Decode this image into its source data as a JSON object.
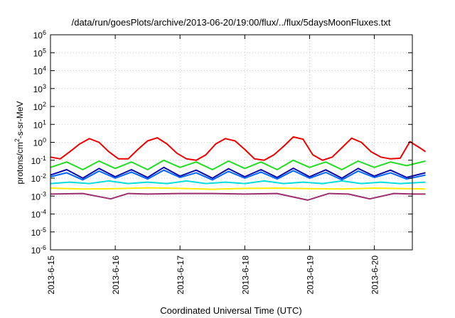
{
  "chart_data": {
    "type": "line",
    "title": "/data/run/goesPlots/archive/2013-06-20/19:00/flux/../flux/5daysMoonFluxes.txt",
    "xlabel": "Coordinated Universal Time (UTC)",
    "ylabel": {
      "pre": "protons/cm",
      "sup": "2",
      "post": "-s-sr-MeV"
    },
    "x_range": [
      "2013-06-15",
      "2013-06-20T19:00"
    ],
    "x_ticks": [
      "2013-6-15",
      "2013-6-16",
      "2013-6-17",
      "2013-6-18",
      "2013-6-19",
      "2013-6-20"
    ],
    "y_scale": "log",
    "y_range": [
      1e-06,
      1000000.0
    ],
    "y_ticks": [
      {
        "base": "10",
        "exp": "-6"
      },
      {
        "base": "10",
        "exp": "-5"
      },
      {
        "base": "10",
        "exp": "-4"
      },
      {
        "base": "10",
        "exp": "-3"
      },
      {
        "base": "10",
        "exp": "-2"
      },
      {
        "base": "10",
        "exp": "-1"
      },
      {
        "base": "10",
        "exp": "0"
      },
      {
        "base": "10",
        "exp": "1"
      },
      {
        "base": "10",
        "exp": "2"
      },
      {
        "base": "10",
        "exp": "3"
      },
      {
        "base": "10",
        "exp": "4"
      },
      {
        "base": "10",
        "exp": "5"
      },
      {
        "base": "10",
        "exp": "6"
      }
    ],
    "grid": true,
    "legend": "none",
    "series": [
      {
        "color": "#9b2f6f",
        "x_days": [
          0,
          0.5,
          0.93,
          1.2,
          1.5,
          2.0,
          2.5,
          3.0,
          3.5,
          3.97,
          4.3,
          4.6,
          4.93,
          5.3,
          5.6,
          5.79
        ],
        "y": [
          0.0013,
          0.0014,
          0.0007,
          0.0014,
          0.0013,
          0.0014,
          0.0014,
          0.0013,
          0.0014,
          0.0006,
          0.0014,
          0.0013,
          0.0007,
          0.0014,
          0.0013,
          0.0013
        ]
      },
      {
        "color": "#ffee00",
        "x_days": [
          0,
          0.5,
          1.0,
          1.5,
          2.0,
          2.5,
          3.0,
          3.5,
          4.0,
          4.5,
          5.0,
          5.5,
          5.79
        ],
        "y": [
          0.0028,
          0.0025,
          0.0026,
          0.0029,
          0.0027,
          0.0024,
          0.0027,
          0.0028,
          0.0026,
          0.0025,
          0.0028,
          0.0026,
          0.0025
        ]
      },
      {
        "color": "#00dddd",
        "x_days": [
          0,
          0.3,
          0.6,
          0.9,
          1.2,
          1.5,
          1.8,
          2.1,
          2.4,
          2.7,
          3.0,
          3.3,
          3.6,
          3.9,
          4.2,
          4.5,
          4.8,
          5.1,
          5.4,
          5.79
        ],
        "y": [
          0.005,
          0.006,
          0.005,
          0.007,
          0.005,
          0.006,
          0.005,
          0.007,
          0.005,
          0.006,
          0.005,
          0.007,
          0.005,
          0.006,
          0.005,
          0.007,
          0.005,
          0.006,
          0.005,
          0.006
        ]
      },
      {
        "color": "#0066ff",
        "x_days": [
          0,
          0.25,
          0.5,
          0.75,
          1.0,
          1.25,
          1.5,
          1.75,
          2.0,
          2.25,
          2.5,
          2.75,
          3.0,
          3.25,
          3.5,
          3.75,
          4.0,
          4.25,
          4.5,
          4.75,
          5.0,
          5.25,
          5.5,
          5.79
        ],
        "y": [
          0.012,
          0.02,
          0.008,
          0.025,
          0.01,
          0.022,
          0.009,
          0.028,
          0.011,
          0.02,
          0.008,
          0.024,
          0.01,
          0.022,
          0.009,
          0.026,
          0.01,
          0.021,
          0.008,
          0.025,
          0.011,
          0.02,
          0.009,
          0.015
        ]
      },
      {
        "color": "#0a0aa8",
        "x_days": [
          0,
          0.25,
          0.5,
          0.75,
          1.0,
          1.25,
          1.5,
          1.75,
          2.0,
          2.25,
          2.5,
          2.75,
          3.0,
          3.25,
          3.5,
          3.75,
          4.0,
          4.25,
          4.5,
          4.75,
          5.0,
          5.25,
          5.5,
          5.79
        ],
        "y": [
          0.015,
          0.03,
          0.01,
          0.035,
          0.012,
          0.03,
          0.011,
          0.04,
          0.013,
          0.028,
          0.01,
          0.034,
          0.012,
          0.03,
          0.011,
          0.036,
          0.012,
          0.029,
          0.01,
          0.035,
          0.013,
          0.028,
          0.011,
          0.02
        ]
      },
      {
        "color": "#22dd22",
        "x_days": [
          0,
          0.25,
          0.5,
          0.75,
          1.0,
          1.25,
          1.5,
          1.75,
          2.0,
          2.25,
          2.5,
          2.75,
          3.0,
          3.25,
          3.5,
          3.75,
          4.0,
          4.25,
          4.5,
          4.75,
          5.0,
          5.25,
          5.5,
          5.79
        ],
        "y": [
          0.04,
          0.08,
          0.03,
          0.09,
          0.035,
          0.08,
          0.03,
          0.1,
          0.04,
          0.08,
          0.03,
          0.09,
          0.035,
          0.08,
          0.03,
          0.1,
          0.04,
          0.08,
          0.03,
          0.09,
          0.04,
          0.08,
          0.05,
          0.09
        ]
      },
      {
        "color": "#ee0000",
        "x_days": [
          0,
          0.15,
          0.3,
          0.45,
          0.6,
          0.75,
          0.9,
          1.05,
          1.2,
          1.35,
          1.5,
          1.65,
          1.8,
          1.95,
          2.1,
          2.25,
          2.4,
          2.55,
          2.7,
          2.85,
          3.0,
          3.15,
          3.3,
          3.45,
          3.6,
          3.75,
          3.9,
          4.05,
          4.2,
          4.35,
          4.5,
          4.65,
          4.8,
          4.95,
          5.1,
          5.25,
          5.4,
          5.55,
          5.7,
          5.79
        ],
        "y": [
          0.15,
          0.12,
          0.3,
          0.8,
          1.6,
          1.0,
          0.3,
          0.12,
          0.12,
          0.4,
          1.2,
          1.8,
          0.8,
          0.25,
          0.12,
          0.1,
          0.2,
          0.8,
          1.6,
          1.2,
          0.4,
          0.12,
          0.1,
          0.2,
          0.6,
          2.0,
          1.5,
          0.2,
          0.1,
          0.15,
          0.5,
          1.7,
          1.0,
          0.3,
          0.15,
          0.12,
          0.13,
          1.1,
          0.5,
          0.3
        ]
      }
    ]
  }
}
